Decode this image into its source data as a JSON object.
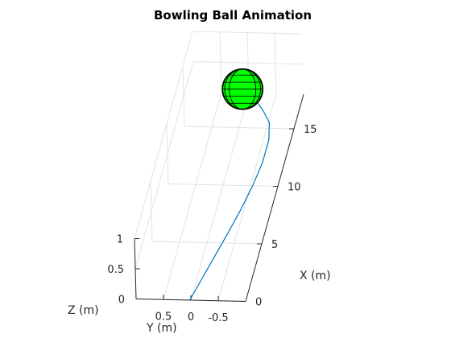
{
  "chart_data": {
    "type": "line",
    "title": "Bowling Ball Animation",
    "xlabel": "X (m)",
    "ylabel": "Y (m)",
    "zlabel": "Z (m)",
    "xlim": [
      0,
      18
    ],
    "ylim": [
      -1,
      1
    ],
    "zlim": [
      0,
      1
    ],
    "x_ticks": [
      "0",
      "5",
      "10",
      "15"
    ],
    "y_ticks": [
      "0.5",
      "0",
      "-0.5"
    ],
    "z_ticks": [
      "0",
      "0.5",
      "1"
    ],
    "grid": true,
    "series": [
      {
        "x": [
          0,
          2,
          4,
          6,
          8,
          10,
          12,
          14,
          15.5,
          16.5,
          17.2
        ],
        "y": [
          0.02,
          -0.1,
          -0.22,
          -0.34,
          -0.45,
          -0.54,
          -0.6,
          -0.6,
          -0.52,
          -0.35,
          -0.2
        ],
        "z": [
          0,
          0,
          0,
          0,
          0,
          0,
          0,
          0,
          0,
          0,
          0
        ],
        "color": "#0072bd"
      }
    ],
    "ball": {
      "color": "#00ff00",
      "edge_color": "#000000",
      "x": 17.8,
      "y": 0.1,
      "z": 0.1
    }
  }
}
